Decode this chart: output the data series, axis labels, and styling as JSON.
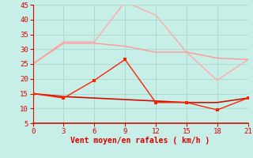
{
  "x": [
    0,
    3,
    6,
    9,
    12,
    15,
    18,
    21
  ],
  "line_gusts": [
    25,
    32.5,
    32.5,
    46,
    41.5,
    29,
    19.5,
    26.5
  ],
  "line_avg_pink": [
    25,
    32,
    32,
    31,
    29,
    29,
    27,
    26.5
  ],
  "line_wind_red": [
    15,
    13.5,
    19.5,
    26.5,
    12,
    12,
    9.5,
    13.5
  ],
  "line_base_red": [
    15,
    14,
    13.5,
    13,
    12.5,
    12,
    12,
    13.5
  ],
  "color_gusts": "#ffaaaa",
  "color_avg_pink": "#ff9999",
  "color_wind_red": "#ff2200",
  "color_base_red": "#cc1100",
  "bg_color": "#c8eee8",
  "grid_color": "#aad8cc",
  "xlabel": "Vent moyen/en rafales ( km/h )",
  "xlabel_color": "#dd0000",
  "tick_color": "#dd0000",
  "spine_color": "#cc1100",
  "xlim": [
    0,
    21
  ],
  "ylim": [
    5,
    45
  ],
  "yticks": [
    5,
    10,
    15,
    20,
    25,
    30,
    35,
    40,
    45
  ],
  "xticks": [
    0,
    3,
    6,
    9,
    12,
    15,
    18,
    21
  ]
}
